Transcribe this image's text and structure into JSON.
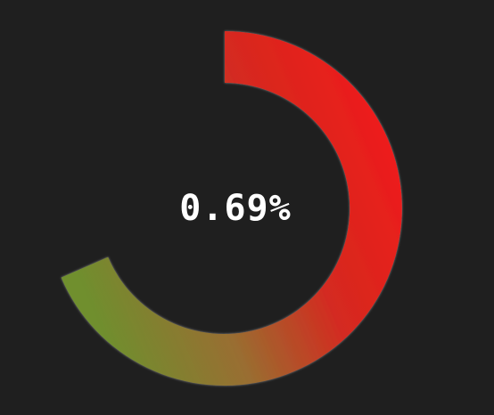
{
  "gauge": {
    "value_text": "0.69%",
    "colors": {
      "background": "#1f1f1f",
      "end": "#ee1c1c",
      "mid": "#9a7a30",
      "start": "#6f8f2f",
      "outline": "#8a8a8a"
    }
  }
}
